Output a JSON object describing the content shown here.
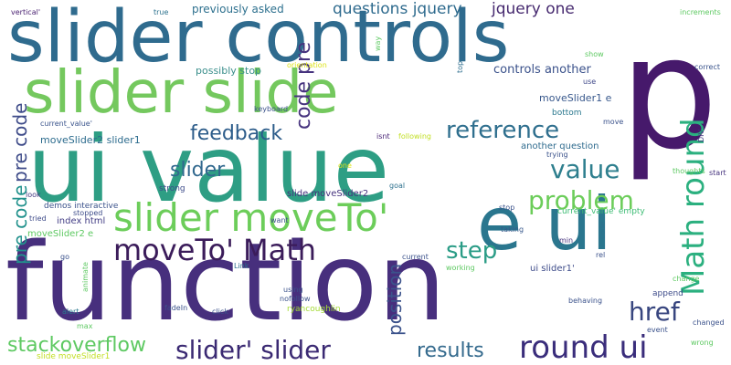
{
  "words": [
    {
      "text": "function",
      "color": "#472f7d"
    },
    {
      "text": "ui value",
      "color": "#2e9e84"
    },
    {
      "text": "slider controls",
      "color": "#2f6b8e"
    },
    {
      "text": "p",
      "color": "#46196b"
    },
    {
      "text": "slider slide",
      "color": "#74c85e"
    },
    {
      "text": "e ui",
      "color": "#2a768e"
    },
    {
      "text": "slider moveTo'",
      "color": "#6ccd5a"
    },
    {
      "text": "moveTo' Math",
      "color": "#3b1c5a"
    },
    {
      "text": "Math round",
      "color": "#2bb07f"
    },
    {
      "text": "round ui",
      "color": "#3a2d7b"
    },
    {
      "text": "slider' slider",
      "color": "#3b2a73"
    },
    {
      "text": "stackoverflow",
      "color": "#5ec962"
    },
    {
      "text": "problem",
      "color": "#6ccd5a"
    },
    {
      "text": "value",
      "color": "#2e7f8e"
    },
    {
      "text": "slider",
      "color": "#31688e"
    },
    {
      "text": "reference",
      "color": "#2f6f8e"
    },
    {
      "text": "feedback",
      "color": "#2c5c8a"
    },
    {
      "text": "href",
      "color": "#38467f"
    },
    {
      "text": "step",
      "color": "#2a9c86"
    },
    {
      "text": "results",
      "color": "#346a8d"
    },
    {
      "text": "position",
      "color": "#3b528b"
    },
    {
      "text": "pre code",
      "color": "#21918c"
    },
    {
      "text": "pre code",
      "color": "#3e4b89"
    },
    {
      "text": "code pre",
      "color": "#46337e"
    },
    {
      "text": "questions jquery",
      "color": "#2f6b8e"
    },
    {
      "text": "jquery one",
      "color": "#46296f"
    },
    {
      "text": "previously asked",
      "color": "#2d708e"
    },
    {
      "text": "controls another",
      "color": "#3b528b"
    },
    {
      "text": "moveSlider1 e",
      "color": "#38588c"
    },
    {
      "text": "moveSlider2 slider1",
      "color": "#2d6c8e"
    },
    {
      "text": "possibly stop",
      "color": "#3b8f8c"
    },
    {
      "text": "another question",
      "color": "#2f6b8e"
    },
    {
      "text": "slide moveSlider2",
      "color": "#46337e"
    },
    {
      "text": "index html",
      "color": "#433e85"
    },
    {
      "text": "demos interactive",
      "color": "#3b528b"
    },
    {
      "text": "moveSlider2 e",
      "color": "#5ec962"
    },
    {
      "text": "ui slider1'",
      "color": "#3e4c8a"
    },
    {
      "text": "current_value' empty",
      "color": "#3dbc74"
    },
    {
      "text": "ryancoughlin",
      "color": "#a5db36"
    },
    {
      "text": "slide moveSlider1",
      "color": "#c2df23"
    },
    {
      "text": "strong",
      "color": "#3e4c8a"
    },
    {
      "text": "keyboard",
      "color": "#3b528b"
    },
    {
      "text": "bottom",
      "color": "#2a788e"
    },
    {
      "text": "append",
      "color": "#3e4c8a"
    },
    {
      "text": "vertical'",
      "color": "#481f70"
    },
    {
      "text": "true",
      "color": "#2c728e"
    },
    {
      "text": "way",
      "color": "#5ec962"
    },
    {
      "text": "top",
      "color": "#2e6e8e"
    },
    {
      "text": "orientation",
      "color": "#dde318"
    },
    {
      "text": "use",
      "color": "#3f4889"
    },
    {
      "text": "show",
      "color": "#5ec962"
    },
    {
      "text": "increments",
      "color": "#5ec962"
    },
    {
      "text": "correct",
      "color": "#3a548c"
    },
    {
      "text": "move",
      "color": "#3b528b"
    },
    {
      "text": "isnt",
      "color": "#482475"
    },
    {
      "text": "following",
      "color": "#c2df23"
    },
    {
      "text": "trying",
      "color": "#3b528b"
    },
    {
      "text": "DIV",
      "color": "#453882"
    },
    {
      "text": "thoughts",
      "color": "#5ec962"
    },
    {
      "text": "start",
      "color": "#46337e"
    },
    {
      "text": "current_value'",
      "color": "#3a548c"
    },
    {
      "text": "one",
      "color": "#dde318"
    },
    {
      "text": "goal",
      "color": "#2d708e"
    },
    {
      "text": "look",
      "color": "#443983"
    },
    {
      "text": "tried",
      "color": "#3e4b89"
    },
    {
      "text": "stopped",
      "color": "#3e4c8a"
    },
    {
      "text": "want",
      "color": "#3b528b"
    },
    {
      "text": "stop",
      "color": "#3b528b"
    },
    {
      "text": "taking",
      "color": "#38588c"
    },
    {
      "text": "min",
      "color": "#46337e"
    },
    {
      "text": "code",
      "color": "#2d708e"
    },
    {
      "text": "rel",
      "color": "#3b528b"
    },
    {
      "text": "current",
      "color": "#3b528b"
    },
    {
      "text": "working",
      "color": "#5ec962"
    },
    {
      "text": "change",
      "color": "#5ec962"
    },
    {
      "text": "behaving",
      "color": "#3b528b"
    },
    {
      "text": "event",
      "color": "#3b528b"
    },
    {
      "text": "changed",
      "color": "#3b528b"
    },
    {
      "text": "wrong",
      "color": "#5ec962"
    },
    {
      "text": "Link",
      "color": "#2d708e"
    },
    {
      "text": "animate",
      "color": "#5ec962"
    },
    {
      "text": "using",
      "color": "#3b528b"
    },
    {
      "text": "nofollow",
      "color": "#3b528b"
    },
    {
      "text": "go",
      "color": "#3b528b"
    },
    {
      "text": "alert",
      "color": "#2a788e"
    },
    {
      "text": "fadeIn",
      "color": "#3b528b"
    },
    {
      "text": "click",
      "color": "#3b528b"
    },
    {
      "text": "max",
      "color": "#5ec962"
    }
  ]
}
